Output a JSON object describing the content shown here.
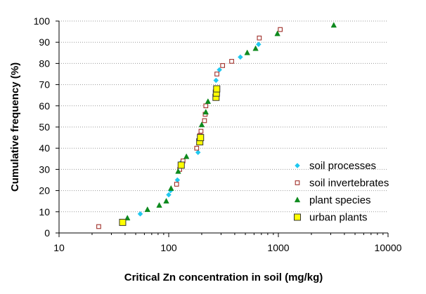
{
  "chart_data": {
    "type": "scatter",
    "title": "",
    "xlabel": "Critical Zn concentration in soil (mg/kg)",
    "ylabel": "Cumulative frequency (%)",
    "x_scale": "log",
    "xlim": [
      10,
      10000
    ],
    "ylim": [
      0,
      100
    ],
    "x_ticks": [
      10,
      100,
      1000,
      10000
    ],
    "y_ticks": [
      0,
      10,
      20,
      30,
      40,
      50,
      60,
      70,
      80,
      90,
      100
    ],
    "grid": "horizontal dotted",
    "legend_position": "bottom-right",
    "series": [
      {
        "name": "soil processes",
        "marker": "diamond",
        "color": "#1fc8f0",
        "points": [
          [
            55,
            9
          ],
          [
            100,
            18
          ],
          [
            104,
            20
          ],
          [
            120,
            25
          ],
          [
            128,
            33
          ],
          [
            185,
            38
          ],
          [
            195,
            43
          ],
          [
            270,
            72
          ],
          [
            290,
            77
          ],
          [
            450,
            83
          ],
          [
            660,
            89
          ]
        ]
      },
      {
        "name": "soil invertebrates",
        "marker": "open-square",
        "color": "#a0302a",
        "points": [
          [
            23,
            3
          ],
          [
            118,
            23
          ],
          [
            126,
            30
          ],
          [
            135,
            34
          ],
          [
            180,
            40
          ],
          [
            192,
            46
          ],
          [
            197,
            48
          ],
          [
            212,
            53
          ],
          [
            215,
            56
          ],
          [
            218,
            60
          ],
          [
            275,
            75
          ],
          [
            310,
            79
          ],
          [
            375,
            81
          ],
          [
            670,
            92
          ],
          [
            1040,
            96
          ]
        ]
      },
      {
        "name": "plant species",
        "marker": "triangle",
        "color": "#0e8a1e",
        "points": [
          [
            42,
            7
          ],
          [
            64,
            11
          ],
          [
            82,
            13
          ],
          [
            95,
            15
          ],
          [
            105,
            21
          ],
          [
            122,
            29
          ],
          [
            145,
            36
          ],
          [
            200,
            51
          ],
          [
            218,
            57
          ],
          [
            228,
            62
          ],
          [
            270,
            68
          ],
          [
            520,
            85
          ],
          [
            620,
            87
          ],
          [
            980,
            94
          ],
          [
            3200,
            98
          ]
        ]
      },
      {
        "name": "urban plants",
        "marker": "filled-square",
        "color": "#ffff00",
        "points": [
          [
            38,
            5
          ],
          [
            130,
            32
          ],
          [
            192,
            43
          ],
          [
            195,
            45
          ],
          [
            270,
            64
          ],
          [
            272,
            66
          ],
          [
            274,
            68
          ]
        ]
      }
    ]
  }
}
